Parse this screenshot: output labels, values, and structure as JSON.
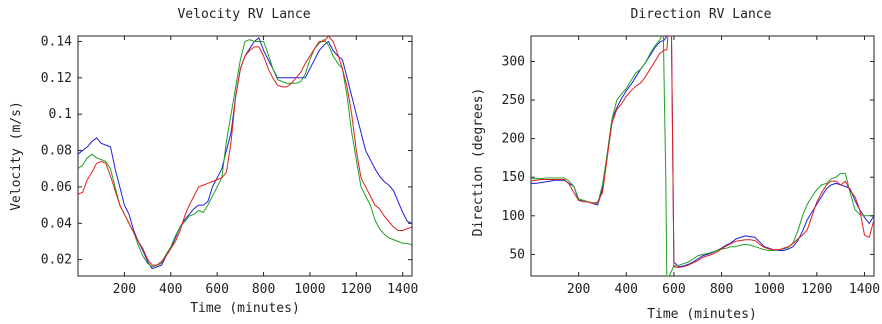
{
  "chart_data": [
    {
      "type": "line",
      "title": "Velocity RV Lance",
      "xlabel": "Time (minutes)",
      "ylabel": "Velocity (m/s)",
      "xlim": [
        0,
        1440
      ],
      "ylim": [
        0.011,
        0.143
      ],
      "xticks": [
        200,
        400,
        600,
        800,
        1000,
        1200,
        1400
      ],
      "yticks": [
        0.02,
        0.04,
        0.06,
        0.08,
        0.1,
        0.12,
        0.14
      ],
      "yticklabels": [
        "0.02",
        "0.04",
        "0.06",
        "0.08",
        "0.1",
        "0.12",
        "0.14"
      ],
      "grid": false,
      "series": [
        {
          "color": "#2020e0",
          "x": [
            0,
            20,
            40,
            60,
            80,
            100,
            120,
            140,
            160,
            180,
            200,
            220,
            240,
            260,
            280,
            300,
            320,
            340,
            360,
            380,
            400,
            420,
            440,
            460,
            480,
            500,
            520,
            540,
            560,
            580,
            600,
            620,
            640,
            660,
            680,
            700,
            720,
            740,
            760,
            780,
            800,
            820,
            840,
            860,
            880,
            900,
            920,
            940,
            960,
            980,
            1000,
            1020,
            1040,
            1060,
            1080,
            1100,
            1120,
            1140,
            1160,
            1180,
            1200,
            1220,
            1240,
            1260,
            1280,
            1300,
            1320,
            1340,
            1360,
            1380,
            1400,
            1420,
            1440
          ],
          "y": [
            0.078,
            0.08,
            0.082,
            0.085,
            0.087,
            0.084,
            0.083,
            0.082,
            0.07,
            0.06,
            0.05,
            0.045,
            0.036,
            0.03,
            0.025,
            0.019,
            0.015,
            0.016,
            0.017,
            0.022,
            0.026,
            0.032,
            0.038,
            0.042,
            0.045,
            0.048,
            0.05,
            0.05,
            0.052,
            0.06,
            0.065,
            0.07,
            0.08,
            0.09,
            0.11,
            0.125,
            0.132,
            0.136,
            0.14,
            0.142,
            0.135,
            0.13,
            0.125,
            0.12,
            0.12,
            0.12,
            0.12,
            0.12,
            0.12,
            0.12,
            0.125,
            0.13,
            0.135,
            0.138,
            0.14,
            0.135,
            0.132,
            0.13,
            0.12,
            0.11,
            0.1,
            0.09,
            0.08,
            0.075,
            0.07,
            0.066,
            0.063,
            0.061,
            0.058,
            0.052,
            0.046,
            0.041,
            0.04
          ]
        },
        {
          "color": "#20a020",
          "x": [
            0,
            20,
            40,
            60,
            80,
            100,
            120,
            140,
            160,
            180,
            200,
            220,
            240,
            260,
            280,
            300,
            320,
            340,
            360,
            380,
            400,
            420,
            440,
            460,
            480,
            500,
            520,
            540,
            560,
            580,
            600,
            620,
            640,
            660,
            680,
            700,
            720,
            740,
            760,
            780,
            800,
            820,
            840,
            860,
            880,
            900,
            920,
            940,
            960,
            980,
            1000,
            1020,
            1040,
            1060,
            1080,
            1100,
            1120,
            1140,
            1160,
            1180,
            1200,
            1220,
            1240,
            1260,
            1280,
            1300,
            1320,
            1340,
            1360,
            1380,
            1400,
            1420,
            1440
          ],
          "y": [
            0.07,
            0.072,
            0.076,
            0.078,
            0.076,
            0.075,
            0.074,
            0.07,
            0.06,
            0.05,
            0.045,
            0.04,
            0.035,
            0.028,
            0.022,
            0.018,
            0.016,
            0.017,
            0.018,
            0.023,
            0.027,
            0.033,
            0.038,
            0.041,
            0.044,
            0.045,
            0.047,
            0.046,
            0.05,
            0.055,
            0.06,
            0.065,
            0.085,
            0.1,
            0.115,
            0.13,
            0.14,
            0.141,
            0.14,
            0.14,
            0.14,
            0.133,
            0.125,
            0.119,
            0.118,
            0.117,
            0.117,
            0.117,
            0.118,
            0.122,
            0.13,
            0.136,
            0.139,
            0.141,
            0.138,
            0.132,
            0.128,
            0.125,
            0.11,
            0.09,
            0.075,
            0.06,
            0.055,
            0.05,
            0.042,
            0.037,
            0.034,
            0.032,
            0.031,
            0.03,
            0.029,
            0.029,
            0.028
          ]
        },
        {
          "color": "#e02020",
          "x": [
            0,
            20,
            40,
            60,
            80,
            100,
            120,
            140,
            160,
            180,
            200,
            220,
            240,
            260,
            280,
            300,
            320,
            340,
            360,
            380,
            400,
            420,
            440,
            460,
            480,
            500,
            520,
            540,
            560,
            580,
            600,
            620,
            640,
            660,
            680,
            700,
            720,
            740,
            760,
            780,
            800,
            820,
            840,
            860,
            880,
            900,
            920,
            940,
            960,
            980,
            1000,
            1020,
            1040,
            1060,
            1080,
            1100,
            1120,
            1140,
            1160,
            1180,
            1200,
            1220,
            1240,
            1260,
            1280,
            1300,
            1320,
            1340,
            1360,
            1380,
            1400,
            1420,
            1440
          ],
          "y": [
            0.056,
            0.057,
            0.064,
            0.068,
            0.073,
            0.074,
            0.073,
            0.066,
            0.058,
            0.05,
            0.045,
            0.04,
            0.035,
            0.03,
            0.026,
            0.02,
            0.017,
            0.017,
            0.019,
            0.022,
            0.026,
            0.03,
            0.036,
            0.044,
            0.05,
            0.055,
            0.06,
            0.061,
            0.062,
            0.063,
            0.064,
            0.065,
            0.068,
            0.085,
            0.11,
            0.125,
            0.132,
            0.135,
            0.137,
            0.137,
            0.132,
            0.125,
            0.12,
            0.116,
            0.115,
            0.115,
            0.117,
            0.12,
            0.123,
            0.128,
            0.132,
            0.136,
            0.14,
            0.14,
            0.143,
            0.14,
            0.133,
            0.125,
            0.115,
            0.1,
            0.08,
            0.065,
            0.06,
            0.055,
            0.05,
            0.048,
            0.044,
            0.041,
            0.038,
            0.036,
            0.036,
            0.037,
            0.038
          ]
        }
      ]
    },
    {
      "type": "line",
      "title": "Direction RV Lance",
      "xlabel": "Time (minutes)",
      "ylabel": "Direction (degrees)",
      "xlim": [
        0,
        1440
      ],
      "ylim": [
        22,
        333
      ],
      "xticks": [
        200,
        400,
        600,
        800,
        1000,
        1200,
        1400
      ],
      "yticks": [
        50,
        100,
        150,
        200,
        250,
        300
      ],
      "yticklabels": [
        "50",
        "100",
        "150",
        "200",
        "250",
        "300"
      ],
      "grid": false,
      "series": [
        {
          "color": "#2020e0",
          "x": [
            0,
            20,
            40,
            60,
            80,
            100,
            120,
            140,
            160,
            180,
            200,
            220,
            240,
            260,
            280,
            300,
            320,
            340,
            360,
            380,
            400,
            420,
            440,
            460,
            480,
            500,
            520,
            540,
            560,
            570,
            575,
            580,
            590,
            600,
            620,
            640,
            660,
            680,
            700,
            720,
            740,
            760,
            780,
            800,
            820,
            840,
            860,
            880,
            900,
            920,
            940,
            960,
            980,
            1000,
            1020,
            1040,
            1060,
            1080,
            1100,
            1120,
            1140,
            1160,
            1180,
            1200,
            1220,
            1240,
            1260,
            1280,
            1300,
            1320,
            1340,
            1360,
            1380,
            1400,
            1420,
            1440
          ],
          "y": [
            142,
            142,
            143,
            144,
            145,
            146,
            146,
            146,
            142,
            138,
            120,
            120,
            118,
            116,
            114,
            135,
            180,
            225,
            240,
            252,
            262,
            270,
            280,
            290,
            298,
            308,
            318,
            325,
            328,
            333,
            333,
            333,
            333,
            40,
            34,
            35,
            37,
            40,
            44,
            48,
            50,
            52,
            55,
            58,
            62,
            65,
            70,
            72,
            74,
            73,
            72,
            66,
            60,
            58,
            56,
            55,
            55,
            57,
            60,
            68,
            80,
            95,
            105,
            115,
            125,
            135,
            140,
            142,
            140,
            138,
            135,
            120,
            108,
            98,
            90,
            100
          ]
        },
        {
          "color": "#20a020",
          "x": [
            0,
            20,
            40,
            60,
            80,
            100,
            120,
            140,
            160,
            180,
            200,
            220,
            240,
            260,
            280,
            300,
            320,
            340,
            360,
            380,
            400,
            420,
            440,
            460,
            480,
            500,
            520,
            540,
            550,
            556,
            560,
            566,
            570,
            580,
            600,
            620,
            640,
            660,
            680,
            700,
            720,
            740,
            760,
            780,
            800,
            820,
            840,
            860,
            880,
            900,
            920,
            940,
            960,
            980,
            1000,
            1020,
            1040,
            1060,
            1080,
            1100,
            1120,
            1140,
            1160,
            1180,
            1200,
            1220,
            1240,
            1260,
            1280,
            1300,
            1320,
            1340,
            1360,
            1380,
            1400,
            1420,
            1440
          ],
          "y": [
            148,
            148,
            148,
            149,
            149,
            149,
            149,
            149,
            145,
            138,
            122,
            120,
            118,
            117,
            116,
            140,
            180,
            225,
            250,
            258,
            265,
            275,
            285,
            290,
            298,
            310,
            320,
            328,
            333,
            333,
            250,
            150,
            22,
            22,
            35,
            36,
            38,
            40,
            44,
            48,
            50,
            51,
            53,
            55,
            57,
            58,
            60,
            60,
            62,
            63,
            62,
            60,
            58,
            56,
            55,
            55,
            56,
            57,
            59,
            65,
            80,
            100,
            115,
            125,
            134,
            140,
            142,
            148,
            150,
            155,
            155,
            130,
            108,
            102,
            100,
            100,
            100
          ]
        },
        {
          "color": "#e02020",
          "x": [
            0,
            20,
            40,
            60,
            80,
            100,
            120,
            140,
            160,
            180,
            200,
            220,
            240,
            260,
            280,
            300,
            320,
            340,
            360,
            380,
            400,
            420,
            440,
            460,
            480,
            500,
            520,
            540,
            560,
            570,
            575,
            580,
            590,
            600,
            620,
            640,
            660,
            680,
            700,
            720,
            740,
            760,
            780,
            800,
            820,
            840,
            860,
            880,
            900,
            920,
            940,
            960,
            980,
            1000,
            1020,
            1040,
            1060,
            1080,
            1100,
            1120,
            1140,
            1160,
            1180,
            1200,
            1220,
            1240,
            1260,
            1280,
            1300,
            1320,
            1340,
            1360,
            1380,
            1400,
            1420,
            1440
          ],
          "y": [
            145,
            146,
            147,
            147,
            147,
            147,
            147,
            147,
            141,
            130,
            120,
            118,
            118,
            116,
            118,
            130,
            175,
            220,
            238,
            245,
            255,
            262,
            268,
            272,
            280,
            290,
            300,
            310,
            315,
            315,
            333,
            333,
            333,
            34,
            33,
            34,
            36,
            39,
            42,
            46,
            48,
            50,
            53,
            57,
            61,
            64,
            67,
            68,
            69,
            69,
            68,
            63,
            59,
            57,
            56,
            56,
            58,
            60,
            64,
            70,
            75,
            82,
            100,
            118,
            130,
            140,
            145,
            145,
            140,
            145,
            132,
            125,
            108,
            75,
            72,
            95
          ]
        }
      ]
    }
  ]
}
